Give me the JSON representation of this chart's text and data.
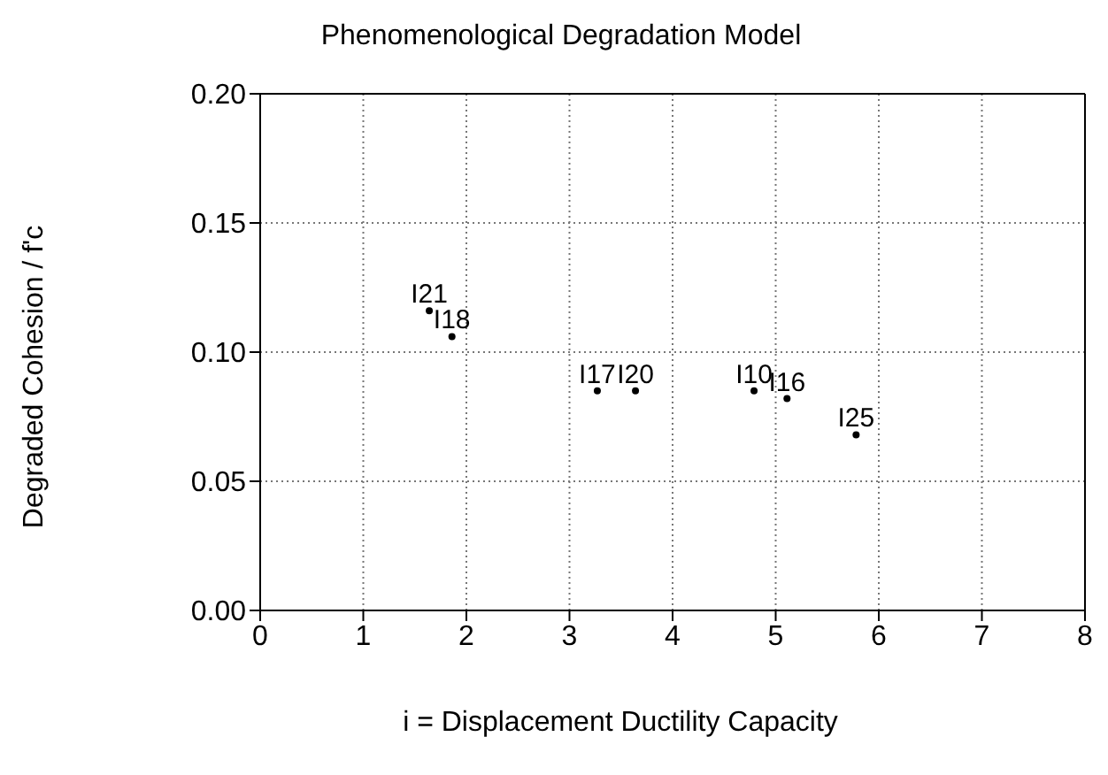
{
  "chart_data": {
    "type": "scatter",
    "title": "Phenomenological Degradation Model",
    "xlabel": "i = Displacement Ductility Capacity",
    "ylabel": "Degraded Cohesion / f'c",
    "xlim": [
      0,
      8
    ],
    "xticks": [
      0,
      1,
      2,
      3,
      4,
      5,
      6,
      7,
      8
    ],
    "ylim": [
      0,
      0.2
    ],
    "yticks": [
      {
        "value": 0,
        "label": "0.00"
      },
      0.05,
      {
        "value": 0.1,
        "label": "0.10"
      },
      0.15,
      {
        "value": 0.2,
        "label": "0.20"
      }
    ],
    "grid": true,
    "legend": false,
    "marker": "circle",
    "series": [
      {
        "name": "I21",
        "color": "#000000",
        "x": [
          1.64
        ],
        "values": [
          0.116
        ]
      },
      {
        "name": "I18",
        "color": "#000000",
        "x": [
          1.86
        ],
        "values": [
          0.106
        ]
      },
      {
        "name": "I17",
        "color": "#000000",
        "x": [
          3.27
        ],
        "values": [
          0.085
        ]
      },
      {
        "name": "I20",
        "color": "#000000",
        "x": [
          3.64
        ],
        "values": [
          0.085
        ]
      },
      {
        "name": "I10",
        "color": "#000000",
        "x": [
          4.79
        ],
        "values": [
          0.085
        ]
      },
      {
        "name": "I16",
        "color": "#000000",
        "x": [
          5.11
        ],
        "values": [
          0.082
        ]
      },
      {
        "name": "I25",
        "color": "#000000",
        "x": [
          5.78
        ],
        "values": [
          0.068
        ]
      }
    ]
  }
}
